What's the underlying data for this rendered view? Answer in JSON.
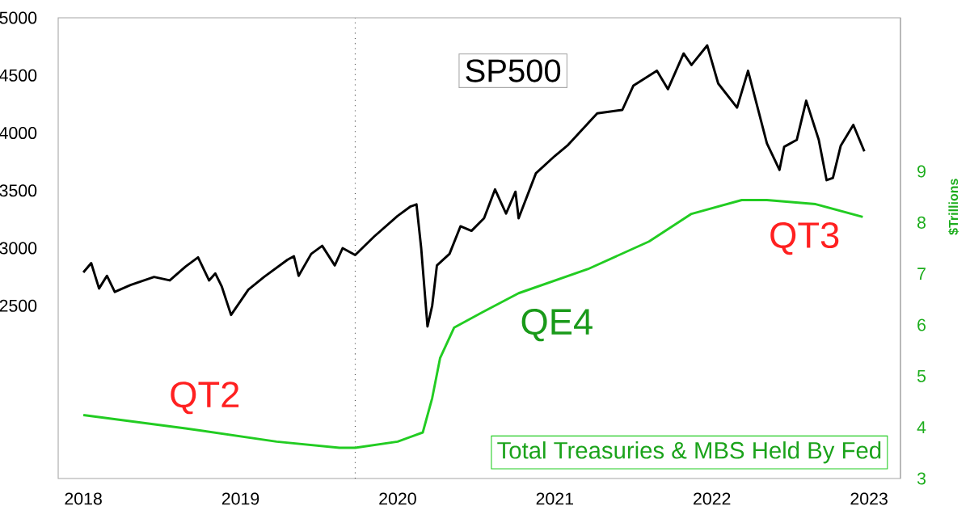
{
  "chart_data": {
    "type": "line",
    "xlim": [
      2017.84,
      2023.2
    ],
    "xticks": [
      2018,
      2019,
      2020,
      2021,
      2022,
      2023
    ],
    "ylim": [
      1000,
      5000
    ],
    "yticks": [
      2500,
      3000,
      3500,
      4000,
      4500,
      5000
    ],
    "y2lim": [
      3,
      12
    ],
    "y2ticks": [
      3,
      4,
      5,
      6,
      7,
      8,
      9
    ],
    "y2label": "$Trillions",
    "series": [
      {
        "name": "SP500",
        "color": "#000000",
        "x": [
          2018.0,
          2018.05,
          2018.1,
          2018.15,
          2018.2,
          2018.3,
          2018.45,
          2018.55,
          2018.65,
          2018.73,
          2018.8,
          2018.84,
          2018.88,
          2018.94,
          2019.05,
          2019.15,
          2019.3,
          2019.34,
          2019.37,
          2019.45,
          2019.52,
          2019.6,
          2019.65,
          2019.73,
          2019.85,
          2020.0,
          2020.08,
          2020.12,
          2020.15,
          2020.19,
          2020.22,
          2020.25,
          2020.33,
          2020.4,
          2020.47,
          2020.55,
          2020.62,
          2020.69,
          2020.75,
          2020.77,
          2020.88,
          2021.0,
          2021.08,
          2021.27,
          2021.43,
          2021.5,
          2021.65,
          2021.72,
          2021.82,
          2021.87,
          2021.97,
          2022.04,
          2022.16,
          2022.23,
          2022.35,
          2022.43,
          2022.46,
          2022.54,
          2022.6,
          2022.68,
          2022.73,
          2022.77,
          2022.82,
          2022.9,
          2022.97
        ],
        "values": [
          2790,
          2870,
          2650,
          2760,
          2620,
          2680,
          2750,
          2720,
          2840,
          2920,
          2720,
          2780,
          2670,
          2420,
          2640,
          2750,
          2900,
          2930,
          2760,
          2950,
          3020,
          2850,
          3000,
          2940,
          3100,
          3280,
          3360,
          3380,
          3000,
          2320,
          2500,
          2850,
          2950,
          3190,
          3150,
          3260,
          3510,
          3300,
          3490,
          3260,
          3650,
          3800,
          3890,
          4170,
          4200,
          4410,
          4540,
          4380,
          4690,
          4590,
          4760,
          4430,
          4220,
          4540,
          3910,
          3680,
          3880,
          3940,
          4280,
          3940,
          3590,
          3610,
          3890,
          4070,
          3840
        ]
      },
      {
        "name": "Total Treasuries & MBS Held By Fed",
        "color": "#22cc22",
        "axis": "y2",
        "x": [
          2018.0,
          2018.65,
          2019.23,
          2019.63,
          2019.73,
          2020.0,
          2020.16,
          2020.22,
          2020.27,
          2020.36,
          2020.54,
          2020.77,
          2021.21,
          2021.6,
          2021.87,
          2022.19,
          2022.35,
          2022.66,
          2022.96
        ],
        "values": [
          4.24,
          3.98,
          3.72,
          3.6,
          3.6,
          3.72,
          3.9,
          4.57,
          5.35,
          5.95,
          6.25,
          6.62,
          7.09,
          7.63,
          8.17,
          8.44,
          8.44,
          8.36,
          8.11
        ]
      }
    ],
    "ref_lines": [
      {
        "axis": "x",
        "value": 2019.73,
        "color": "#444444",
        "line_style": "dotted"
      }
    ],
    "annotations": [
      "QT2",
      "QE4",
      "QT3"
    ]
  }
}
